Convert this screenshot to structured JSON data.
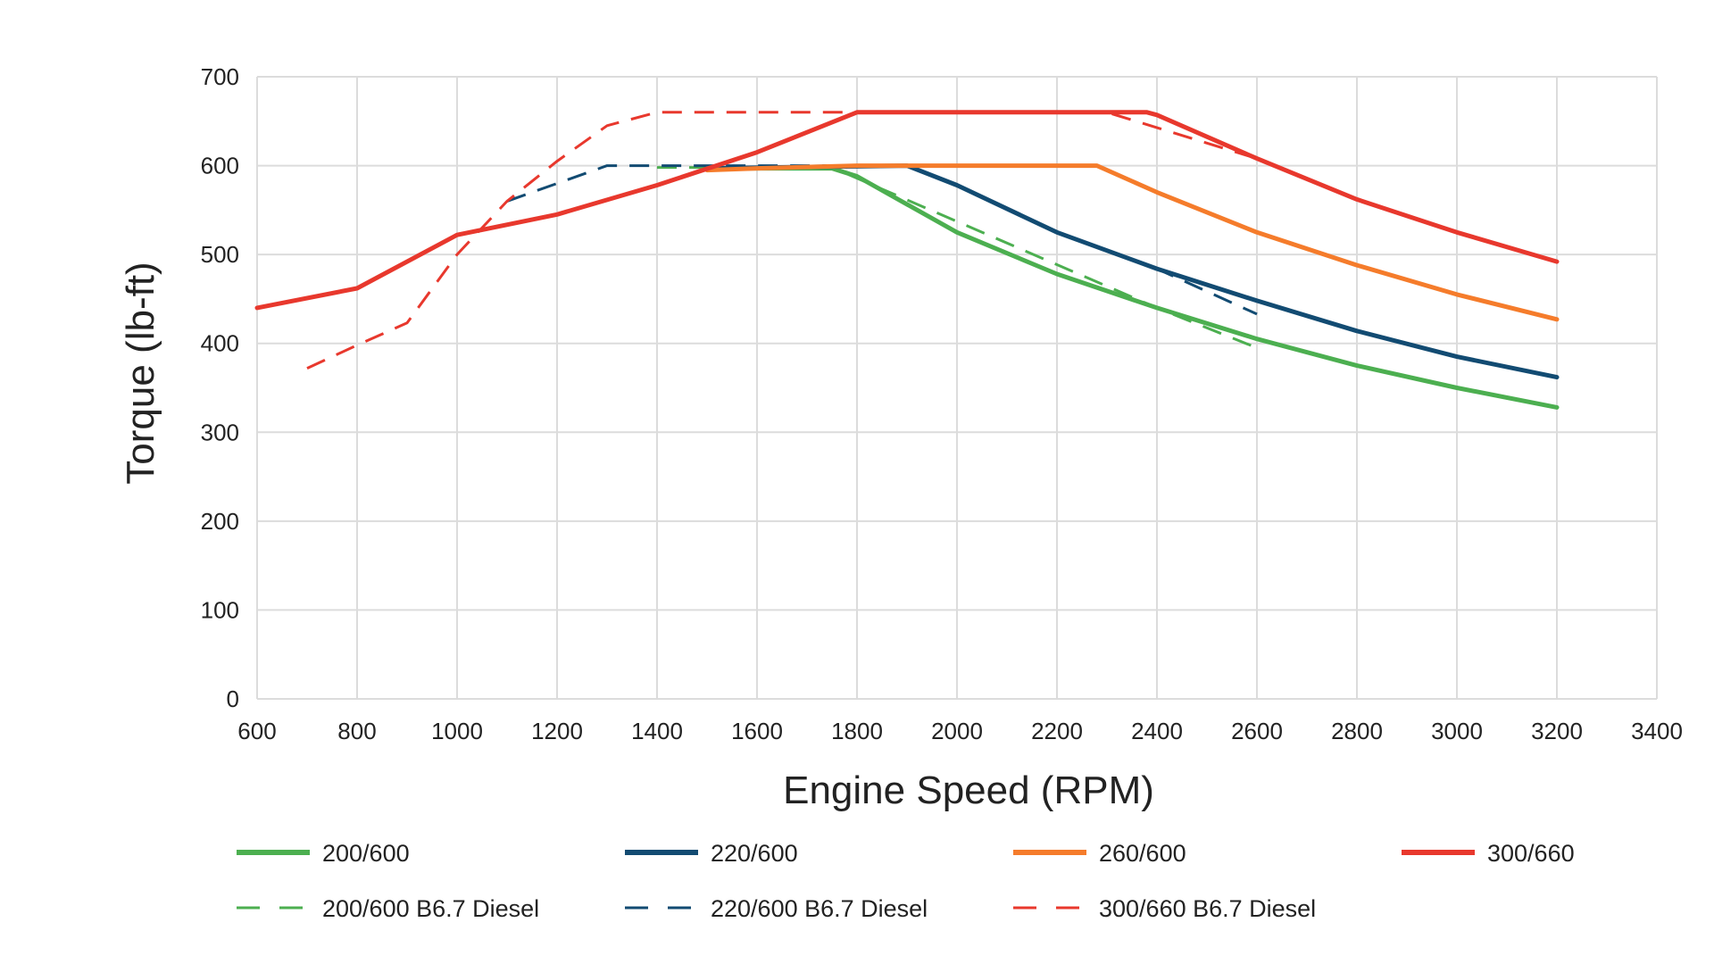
{
  "chart_data": {
    "type": "line",
    "title": "",
    "xlabel": "Engine Speed (RPM)",
    "ylabel": "Torque (lb-ft)",
    "xlim": [
      600,
      3400
    ],
    "ylim": [
      0,
      700
    ],
    "xticks": [
      "600",
      "800",
      "1000",
      "1200",
      "1400",
      "1600",
      "1800",
      "2000",
      "2200",
      "2400",
      "2600",
      "2800",
      "3000",
      "3200",
      "3400"
    ],
    "yticks": [
      "0",
      "100",
      "200",
      "300",
      "400",
      "500",
      "600",
      "700"
    ],
    "grid": true,
    "legend_position": "bottom",
    "series": [
      {
        "name": "200/600",
        "color": "#4caf50",
        "style": "solid",
        "points": [
          [
            1500,
            597
          ],
          [
            1750,
            597
          ],
          [
            1800,
            588
          ],
          [
            2000,
            525
          ],
          [
            2200,
            478
          ],
          [
            2400,
            440
          ],
          [
            2600,
            405
          ],
          [
            2800,
            375
          ],
          [
            3000,
            350
          ],
          [
            3200,
            328
          ]
        ]
      },
      {
        "name": "220/600",
        "color": "#124b72",
        "style": "solid",
        "points": [
          [
            1500,
            597
          ],
          [
            1900,
            600
          ],
          [
            2000,
            578
          ],
          [
            2200,
            525
          ],
          [
            2400,
            484
          ],
          [
            2600,
            448
          ],
          [
            2800,
            414
          ],
          [
            3000,
            385
          ],
          [
            3200,
            362
          ]
        ]
      },
      {
        "name": "260/600",
        "color": "#f57c2b",
        "style": "solid",
        "points": [
          [
            1500,
            595
          ],
          [
            1600,
            597
          ],
          [
            1800,
            600
          ],
          [
            2280,
            600
          ],
          [
            2400,
            570
          ],
          [
            2600,
            525
          ],
          [
            2800,
            488
          ],
          [
            3000,
            455
          ],
          [
            3200,
            427
          ]
        ]
      },
      {
        "name": "300/660",
        "color": "#e8382d",
        "style": "solid",
        "points": [
          [
            600,
            440
          ],
          [
            800,
            462
          ],
          [
            1000,
            522
          ],
          [
            1200,
            545
          ],
          [
            1400,
            578
          ],
          [
            1600,
            615
          ],
          [
            1800,
            660
          ],
          [
            2380,
            660
          ],
          [
            2400,
            657
          ],
          [
            2600,
            608
          ],
          [
            2800,
            562
          ],
          [
            3000,
            525
          ],
          [
            3200,
            492
          ]
        ]
      },
      {
        "name": "200/600 B6.7 Diesel",
        "color": "#4caf50",
        "style": "dashed",
        "points": [
          [
            1400,
            598
          ],
          [
            1750,
            598
          ],
          [
            2400,
            440
          ],
          [
            2600,
            395
          ]
        ]
      },
      {
        "name": "220/600 B6.7 Diesel",
        "color": "#124b72",
        "style": "dashed",
        "points": [
          [
            1100,
            560
          ],
          [
            1300,
            600
          ],
          [
            1900,
            600
          ],
          [
            2000,
            578
          ],
          [
            2200,
            525
          ],
          [
            2400,
            484
          ],
          [
            2600,
            433
          ]
        ]
      },
      {
        "name": "300/660 B6.7 Diesel",
        "color": "#e8382d",
        "style": "dashed",
        "points": [
          [
            700,
            372
          ],
          [
            800,
            398
          ],
          [
            900,
            423
          ],
          [
            1000,
            500
          ],
          [
            1100,
            560
          ],
          [
            1200,
            605
          ],
          [
            1300,
            645
          ],
          [
            1400,
            660
          ],
          [
            2300,
            660
          ],
          [
            2600,
            608
          ]
        ]
      }
    ]
  }
}
